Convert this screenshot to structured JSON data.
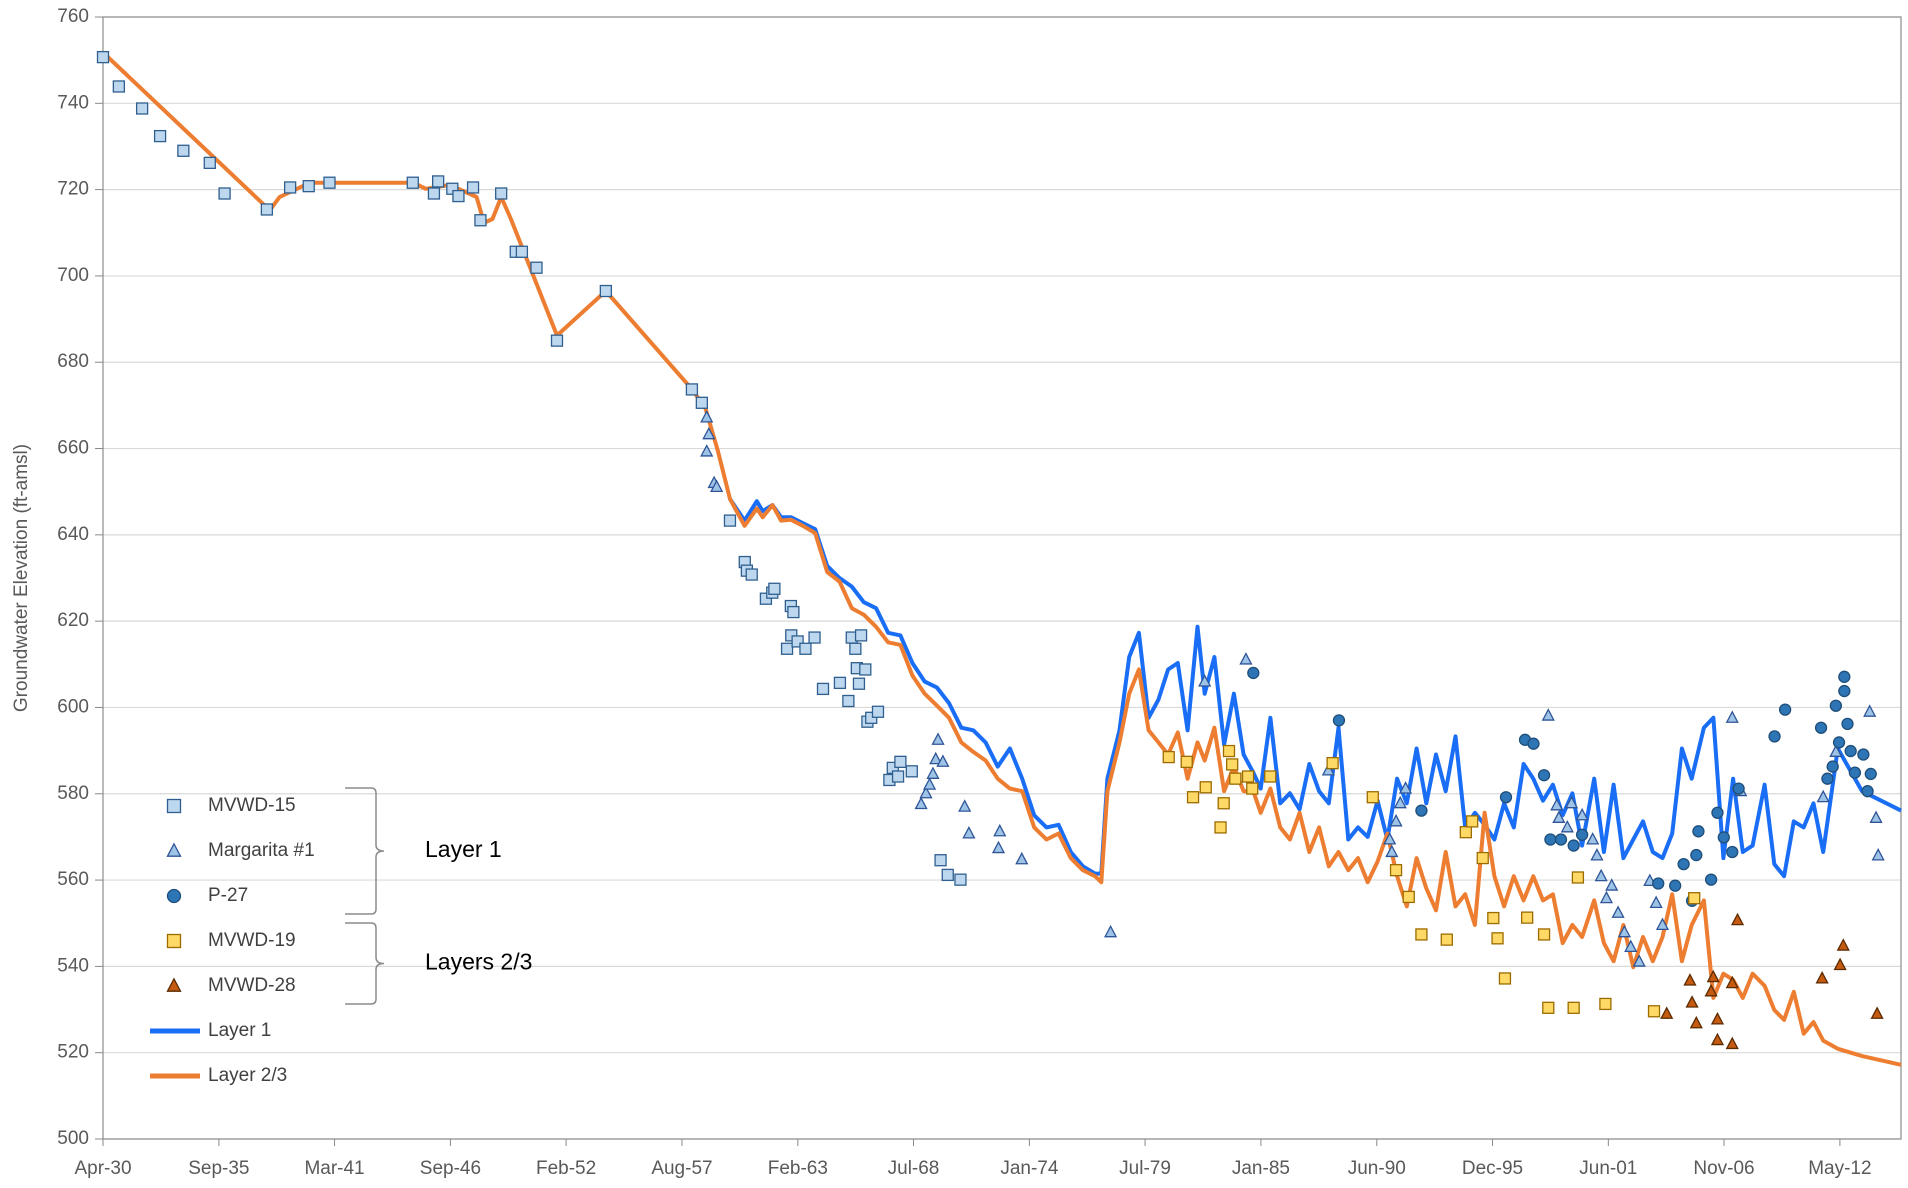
{
  "chart_data": {
    "type": "line",
    "ylabel": "Groundwater Elevation (ft-amsl)",
    "xlim": [
      1930.25,
      2015.28
    ],
    "ylim": [
      500,
      760
    ],
    "yticks": [
      500,
      520,
      540,
      560,
      580,
      600,
      620,
      640,
      660,
      680,
      700,
      720,
      740,
      760
    ],
    "xticks": [
      {
        "value": 1930.25,
        "label": "Apr-30"
      },
      {
        "value": 1935.73,
        "label": "Sep-35"
      },
      {
        "value": 1941.2,
        "label": "Mar-41"
      },
      {
        "value": 1946.68,
        "label": "Sep-46"
      },
      {
        "value": 1952.15,
        "label": "Feb-52"
      },
      {
        "value": 1957.63,
        "label": "Aug-57"
      },
      {
        "value": 1963.11,
        "label": "Feb-63"
      },
      {
        "value": 1968.58,
        "label": "Jul-68"
      },
      {
        "value": 1974.06,
        "label": "Jan-74"
      },
      {
        "value": 1979.53,
        "label": "Jul-79"
      },
      {
        "value": 1985.01,
        "label": "Jan-85"
      },
      {
        "value": 1990.49,
        "label": "Jun-90"
      },
      {
        "value": 1995.96,
        "label": "Dec-95"
      },
      {
        "value": 2001.44,
        "label": "Jun-01"
      },
      {
        "value": 2006.91,
        "label": "Nov-06"
      },
      {
        "value": 2012.39,
        "label": "May-12"
      }
    ],
    "grid": true,
    "legend_groups": [
      "Layer 1",
      "Layers 2/3"
    ],
    "series": [
      {
        "name": "MVWD-15",
        "marker": "square",
        "color": "#bdd7ee",
        "edgecolor": "#2f5f8f",
        "x": [
          1930.25,
          1931.0,
          1932.1,
          1932.95,
          1934.05,
          1935.3,
          1936.0,
          1938.0,
          1939.1,
          1939.98,
          1940.96,
          1944.9,
          1945.9,
          1946.1,
          1946.77,
          1947.06,
          1947.75,
          1948.1,
          1949.08,
          1949.77,
          1950.06,
          1950.75,
          1951.72,
          1954.03,
          1958.1,
          1958.57,
          1959.9,
          1960.6,
          1960.7,
          1960.93,
          1961.6,
          1961.9,
          1962.0,
          1962.78,
          1962.9,
          1962.6,
          1962.8,
          1963.1,
          1963.47,
          1963.9,
          1964.3,
          1965.1,
          1965.5,
          1965.66,
          1965.83,
          1966.1,
          1965.9,
          1966.3,
          1966.0,
          1966.4,
          1966.58,
          1966.9,
          1967.44,
          1967.6,
          1967.85,
          1967.96,
          1968.5,
          1969.86,
          1970.2,
          1970.8
        ],
        "values": [
          750.7,
          743.9,
          738.8,
          732.4,
          729,
          726.2,
          719.1,
          715.4,
          720.5,
          720.8,
          721.6,
          721.6,
          719.1,
          721.9,
          720.2,
          718.5,
          720.5,
          712.9,
          719.1,
          705.6,
          705.6,
          701.9,
          685,
          696.5,
          673.7,
          670.6,
          643.3,
          633.7,
          631.7,
          630.8,
          625.2,
          626.6,
          627.5,
          623.5,
          622.1,
          613.6,
          616.7,
          615.3,
          613.6,
          616.2,
          604.3,
          605.7,
          601.5,
          616.2,
          613.6,
          616.7,
          609.1,
          608.8,
          605.5,
          596.7,
          597.6,
          599,
          583.2,
          586,
          584,
          587.4,
          585.2,
          564.6,
          561.2,
          560.1
        ]
      },
      {
        "name": "Margarita #1",
        "marker": "triangle",
        "color": "#9dc3e6",
        "edgecolor": "#2f5597",
        "x": [
          1958.8,
          1958.9,
          1958.8,
          1959.15,
          1959.27,
          1968.94,
          1969.17,
          1969.34,
          1969.5,
          1969.63,
          1969.74,
          1969.97,
          1971.0,
          1971.2,
          1972.66,
          1972.6,
          1973.7,
          1977.9,
          1982.35,
          1984.3,
          1988.2,
          1991.1,
          1991.2,
          1991.4,
          1991.6,
          1991.85,
          1998.6,
          1999.0,
          1999.1,
          1999.5,
          1999.7,
          2000.2,
          2000.7,
          2000.9,
          2001.1,
          2001.35,
          2001.6,
          2001.9,
          2002.2,
          2002.5,
          2002.9,
          2003.4,
          2003.7,
          2004.0,
          2007.3,
          2007.7,
          2011.6,
          2012.2,
          2013.8,
          2014.1,
          2014.2
        ],
        "values": [
          667.2,
          663.3,
          659.3,
          652,
          651.1,
          577.6,
          580.1,
          582.1,
          584.6,
          588,
          592.5,
          587.4,
          577,
          570.8,
          571.3,
          567.4,
          564.8,
          547.9,
          606,
          611.1,
          585.4,
          569.4,
          566.5,
          573.6,
          577.8,
          581.2,
          598.1,
          577.3,
          574.4,
          572.2,
          577.8,
          575,
          569.4,
          565.7,
          560.9,
          555.8,
          558.7,
          552.4,
          547.9,
          544.5,
          541.1,
          559.8,
          554.7,
          549.6,
          597.6,
          580.6,
          579.2,
          589.7,
          599,
          574.4,
          565.7
        ]
      },
      {
        "name": "P-27",
        "marker": "circle",
        "color": "#2e75b6",
        "edgecolor": "#1f4e79",
        "x": [
          1984.65,
          1988.7,
          1992.6,
          1996.6,
          1997.5,
          1997.9,
          1998.4,
          1998.7,
          1999.2,
          1999.8,
          2000.2,
          2003.8,
          2004.6,
          2005.0,
          2005.4,
          2005.6,
          2005.7,
          2006.3,
          2006.6,
          2006.9,
          2007.3,
          2007.6,
          2009.3,
          2009.8,
          2011.5,
          2011.8,
          2012.05,
          2012.2,
          2012.35,
          2012.6,
          2012.6,
          2012.75,
          2012.9,
          2013.1,
          2013.5,
          2013.7,
          2013.85
        ],
        "values": [
          608,
          597,
          576.1,
          579.2,
          592.5,
          591.6,
          584.3,
          569.4,
          569.4,
          568,
          570.5,
          559.2,
          558.7,
          563.7,
          555.2,
          565.8,
          571.3,
          560.1,
          575.6,
          569.9,
          566.5,
          581.2,
          593.3,
          599.5,
          595.3,
          583.5,
          586.3,
          600.4,
          591.9,
          607.1,
          603.8,
          596.2,
          589.9,
          584.9,
          589.1,
          580.6,
          584.6
        ]
      },
      {
        "name": "MVWD-19",
        "marker": "square",
        "color": "#ffd966",
        "edgecolor": "#9c6b00",
        "x": [
          1980.65,
          1981.5,
          1981.8,
          1982.4,
          1983.1,
          1983.25,
          1983.5,
          1983.65,
          1983.8,
          1984.4,
          1984.6,
          1985.45,
          1988.4,
          1990.3,
          1991.4,
          1992.0,
          1992.6,
          1993.8,
          1994.7,
          1995.0,
          1995.5,
          1996.0,
          1996.2,
          1996.55,
          1997.6,
          1998.4,
          1998.6,
          1999.8,
          2000.0,
          2001.3,
          2003.6,
          2005.5
        ],
        "values": [
          588.5,
          587.4,
          579.2,
          581.5,
          572.2,
          577.8,
          589.9,
          586.8,
          583.5,
          584,
          581.2,
          584,
          587.1,
          579.2,
          562.3,
          556.1,
          547.4,
          546.2,
          571.1,
          573.6,
          565.1,
          551.2,
          546.5,
          537.2,
          551.3,
          547.4,
          530.4,
          530.4,
          560.6,
          531.3,
          529.6,
          555.8
        ]
      },
      {
        "name": "MVWD-28",
        "marker": "triangle",
        "color": "#c55a11",
        "edgecolor": "#5a2a00",
        "x": [
          2004.2,
          2005.3,
          2005.4,
          2005.6,
          2006.3,
          2006.4,
          2006.6,
          2006.6,
          2007.3,
          2007.3,
          2007.55,
          2011.55,
          2012.4,
          2012.55,
          2014.15
        ],
        "values": [
          529,
          536.7,
          531.6,
          526.8,
          534.2,
          537.5,
          527.7,
          522.9,
          536.1,
          522,
          550.7,
          537.2,
          540.3,
          544.8,
          529
        ]
      },
      {
        "name": "Layer 1",
        "color": "#1a6ef5",
        "x": [
          1959.9,
          1960.59,
          1961.17,
          1961.45,
          1961.91,
          1962.32,
          1962.78,
          1963.35,
          1963.93,
          1964.5,
          1965.08,
          1965.66,
          1966.23,
          1966.81,
          1967.38,
          1967.96,
          1968.53,
          1969.11,
          1969.69,
          1970.26,
          1970.84,
          1971.41,
          1971.99,
          1972.56,
          1973.14,
          1973.72,
          1974.29,
          1974.87,
          1975.44,
          1976.02,
          1976.59,
          1977.17,
          1977.46,
          1977.75,
          1978.32,
          1978.78,
          1979.24,
          1979.7,
          1980.16,
          1980.62,
          1981.08,
          1981.54,
          1982.01,
          1982.35,
          1982.81,
          1983.27,
          1983.73,
          1984.19,
          1984.65,
          1985.0,
          1985.46,
          1985.92,
          1986.38,
          1986.84,
          1987.3,
          1987.76,
          1988.22,
          1988.68,
          1989.14,
          1989.6,
          1990.06,
          1990.53,
          1990.99,
          1991.45,
          1991.91,
          1992.37,
          1992.83,
          1993.29,
          1993.75,
          1994.21,
          1994.67,
          1995.13,
          1995.59,
          1996.05,
          1996.51,
          1996.97,
          1997.43,
          1997.89,
          1998.35,
          1998.82,
          1999.28,
          1999.74,
          2000.2,
          2000.77,
          2001.23,
          2001.69,
          2002.15,
          2002.62,
          2003.08,
          2003.54,
          2004.0,
          2004.46,
          2004.92,
          2005.38,
          2005.96,
          2006.41,
          2006.88,
          2007.34,
          2007.8,
          2008.26,
          2008.83,
          2009.29,
          2009.75,
          2010.21,
          2010.68,
          2011.14,
          2011.6,
          2012.29,
          2013.44,
          2015.28
        ],
        "values": [
          648.3,
          643.3,
          647.8,
          645.5,
          646.9,
          644.1,
          644.1,
          642.7,
          641.3,
          632.8,
          630.0,
          628.0,
          624.4,
          623.0,
          617.3,
          616.7,
          610.3,
          606.0,
          604.6,
          601.0,
          595.3,
          594.7,
          591.9,
          586.3,
          590.5,
          583.5,
          575.0,
          572.2,
          572.8,
          566.5,
          563.2,
          561.5,
          561.5,
          583.5,
          594.7,
          611.7,
          617.3,
          597.6,
          601.8,
          608.8,
          610.3,
          594.7,
          618.7,
          603.2,
          611.7,
          591.4,
          603.2,
          589.1,
          584.9,
          581.2,
          597.6,
          577.8,
          580.1,
          576.4,
          586.9,
          580.6,
          577.8,
          595.3,
          569.4,
          572.2,
          570.0,
          578.4,
          569.4,
          583.5,
          577.8,
          590.5,
          577.8,
          589.1,
          580.6,
          593.3,
          572.2,
          575.6,
          572.8,
          569.4,
          577.8,
          572.2,
          586.9,
          583.5,
          578.4,
          582.1,
          575.0,
          580.1,
          568.0,
          583.5,
          566.5,
          582.1,
          565.1,
          569.4,
          573.6,
          566.5,
          565.1,
          570.8,
          590.5,
          583.5,
          595.3,
          597.6,
          565.1,
          583.5,
          566.5,
          568.0,
          582.1,
          563.7,
          560.9,
          573.6,
          572.2,
          577.8,
          566.5,
          590.5,
          580.6,
          576.1
        ]
      },
      {
        "name": "Layer 2/3",
        "color": "#ed7d31",
        "x": [
          1930.25,
          1938.14,
          1938.6,
          1940.04,
          1944.93,
          1945.51,
          1946.66,
          1947.41,
          1947.92,
          1948.27,
          1948.67,
          1949.08,
          1949.54,
          1951.72,
          1954.03,
          1958.11,
          1958.75,
          1959.32,
          1959.9,
          1960.59,
          1961.17,
          1961.45,
          1961.91,
          1962.32,
          1962.78,
          1963.35,
          1963.93,
          1964.5,
          1965.08,
          1965.66,
          1966.23,
          1966.81,
          1967.38,
          1967.96,
          1968.53,
          1969.11,
          1969.69,
          1970.26,
          1970.84,
          1971.41,
          1971.99,
          1972.56,
          1973.14,
          1973.72,
          1974.29,
          1974.87,
          1975.44,
          1976.02,
          1976.59,
          1977.17,
          1977.46,
          1977.75,
          1978.32,
          1978.78,
          1979.24,
          1979.7,
          1980.16,
          1980.62,
          1981.08,
          1981.54,
          1982.01,
          1982.35,
          1982.81,
          1983.27,
          1983.73,
          1984.19,
          1984.65,
          1985.0,
          1985.46,
          1985.92,
          1986.38,
          1986.84,
          1987.3,
          1987.76,
          1988.22,
          1988.68,
          1989.14,
          1989.6,
          1990.06,
          1990.53,
          1990.99,
          1991.45,
          1991.91,
          1992.37,
          1992.83,
          1993.29,
          1993.75,
          1994.21,
          1994.67,
          1995.13,
          1995.59,
          1996.05,
          1996.51,
          1996.97,
          1997.43,
          1997.89,
          1998.35,
          1998.82,
          1999.28,
          1999.74,
          2000.2,
          2000.77,
          2001.23,
          2001.69,
          2002.15,
          2002.62,
          2003.08,
          2003.54,
          2004.0,
          2004.46,
          2004.92,
          2005.38,
          2005.96,
          2006.41,
          2006.88,
          2007.34,
          2007.8,
          2008.26,
          2008.83,
          2009.29,
          2009.75,
          2010.21,
          2010.68,
          2011.14,
          2011.6,
          2012.29,
          2013.44,
          2015.28
        ],
        "values": [
          751.8,
          715.2,
          718.3,
          721.6,
          721.6,
          720.2,
          721.1,
          719.4,
          718.3,
          712.3,
          713.2,
          718.3,
          713.2,
          686.2,
          696.5,
          673.7,
          669.2,
          659.6,
          648.3,
          642.1,
          646.1,
          644.1,
          646.9,
          643.3,
          643.5,
          642.1,
          640.4,
          631.4,
          629.2,
          623.0,
          621.5,
          618.7,
          615.1,
          614.5,
          607.4,
          603.2,
          600.4,
          597.6,
          591.9,
          589.7,
          587.7,
          583.5,
          581.2,
          580.6,
          572.2,
          569.4,
          570.8,
          565.1,
          562.3,
          560.9,
          559.5,
          580.6,
          591.9,
          603.2,
          608.8,
          594.7,
          591.9,
          589.1,
          594.2,
          583.5,
          591.9,
          587.7,
          595.3,
          580.6,
          586.3,
          580.6,
          580.6,
          575.6,
          581.2,
          572.2,
          569.4,
          575.6,
          566.5,
          572.2,
          563.2,
          566.5,
          562.3,
          565.1,
          559.5,
          564.3,
          570.8,
          560.9,
          553.9,
          565.1,
          558.1,
          553.0,
          566.5,
          553.9,
          556.7,
          549.6,
          575.6,
          560.9,
          553.9,
          560.9,
          555.3,
          560.9,
          555.3,
          556.7,
          545.4,
          549.6,
          546.8,
          555.3,
          545.4,
          541.2,
          549.6,
          539.8,
          546.8,
          541.2,
          546.8,
          556.7,
          541.2,
          549.6,
          555.3,
          532.7,
          538.3,
          536.9,
          532.7,
          538.3,
          535.5,
          529.9,
          527.6,
          534.1,
          524.4,
          527.1,
          522.8,
          520.9,
          519.2,
          517.2
        ]
      }
    ]
  }
}
